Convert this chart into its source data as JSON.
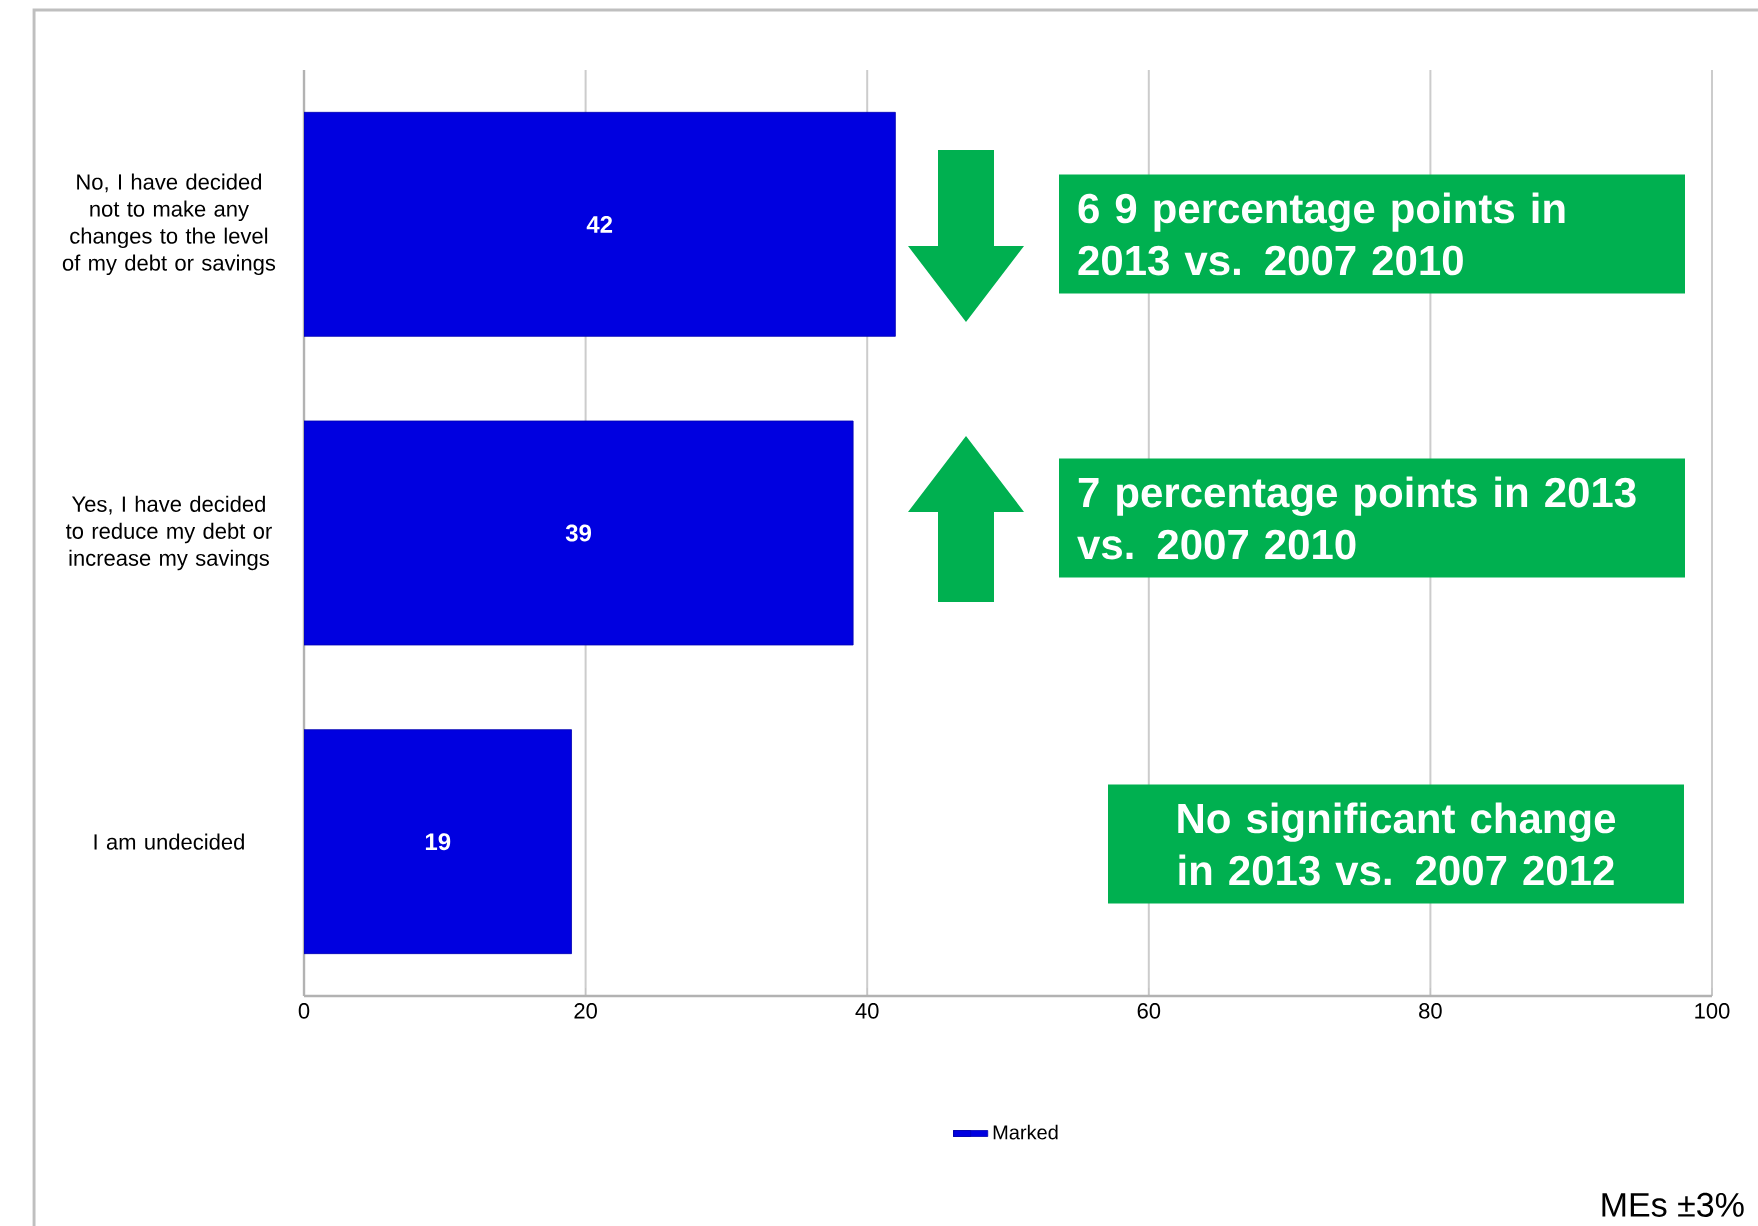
{
  "chart_data": {
    "type": "bar",
    "orientation": "horizontal",
    "categories": [
      "No, I have decided not to make any changes to the level of my debt or savings",
      "Yes, I have decided to reduce my debt or increase my savings",
      "I am undecided"
    ],
    "series": [
      {
        "name": "Marked",
        "color": "#0000e0",
        "values": [
          42,
          39,
          19
        ]
      }
    ],
    "xlim": [
      0,
      100
    ],
    "xticks": [
      0,
      20,
      40,
      60,
      80,
      100
    ],
    "grid": "x",
    "legend": "bottom",
    "data_labels": true,
    "annotations": [
      "6 9 percentage points in 2013 vs. 2007 2010",
      "7 percentage points in 2013 vs. 2007 2010",
      "No significant change in 2013 vs. 2007 2012",
      "MEs ±3%"
    ]
  }
}
